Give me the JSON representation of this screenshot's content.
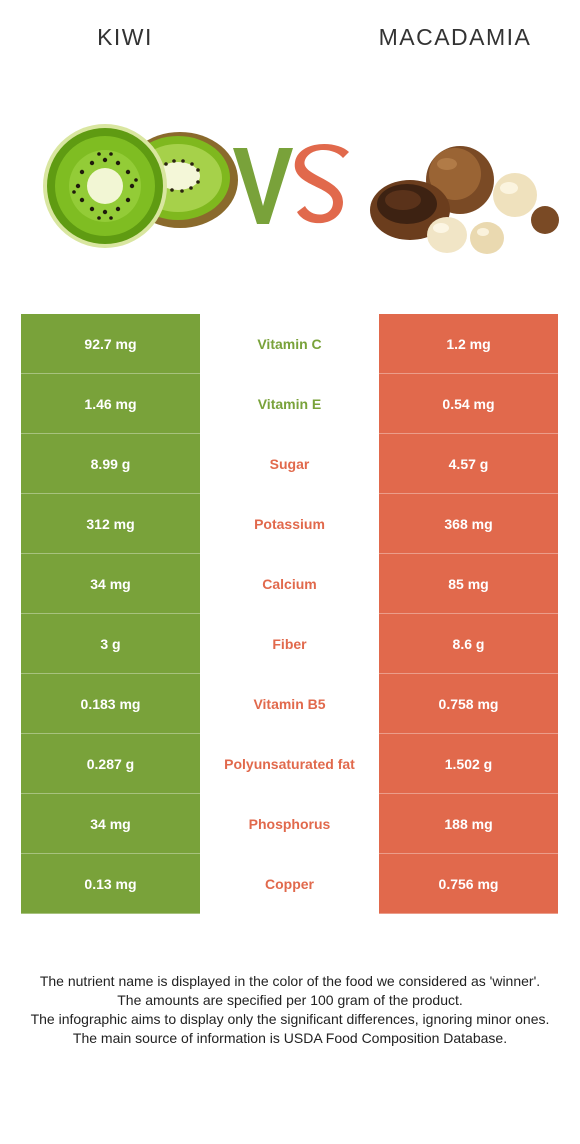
{
  "header": {
    "left_food": "KIWI",
    "right_food": "MACADAMIA",
    "vs_text": "VS"
  },
  "colors": {
    "winner_left": "#79a23a",
    "winner_right": "#e1694c",
    "vs_v": "#79a23a",
    "vs_s": "#e1694c"
  },
  "rows": [
    {
      "left": "92.7 mg",
      "nutrient": "Vitamin C",
      "right": "1.2 mg",
      "winner": "left"
    },
    {
      "left": "1.46 mg",
      "nutrient": "Vitamin E",
      "right": "0.54 mg",
      "winner": "left"
    },
    {
      "left": "8.99 g",
      "nutrient": "Sugar",
      "right": "4.57 g",
      "winner": "right"
    },
    {
      "left": "312 mg",
      "nutrient": "Potassium",
      "right": "368 mg",
      "winner": "right"
    },
    {
      "left": "34 mg",
      "nutrient": "Calcium",
      "right": "85 mg",
      "winner": "right"
    },
    {
      "left": "3 g",
      "nutrient": "Fiber",
      "right": "8.6 g",
      "winner": "right"
    },
    {
      "left": "0.183 mg",
      "nutrient": "Vitamin B5",
      "right": "0.758 mg",
      "winner": "right"
    },
    {
      "left": "0.287 g",
      "nutrient": "Polyunsaturated fat",
      "right": "1.502 g",
      "winner": "right"
    },
    {
      "left": "34 mg",
      "nutrient": "Phosphorus",
      "right": "188 mg",
      "winner": "right"
    },
    {
      "left": "0.13 mg",
      "nutrient": "Copper",
      "right": "0.756 mg",
      "winner": "right"
    }
  ],
  "footnote": {
    "line1": "The nutrient name is displayed in the color of the food we considered as 'winner'.",
    "line2": "The amounts are specified per 100 gram of the product.",
    "line3": "The infographic aims to display only the significant differences, ignoring minor ones.",
    "line4": "The main source of information is USDA Food Composition Database."
  }
}
